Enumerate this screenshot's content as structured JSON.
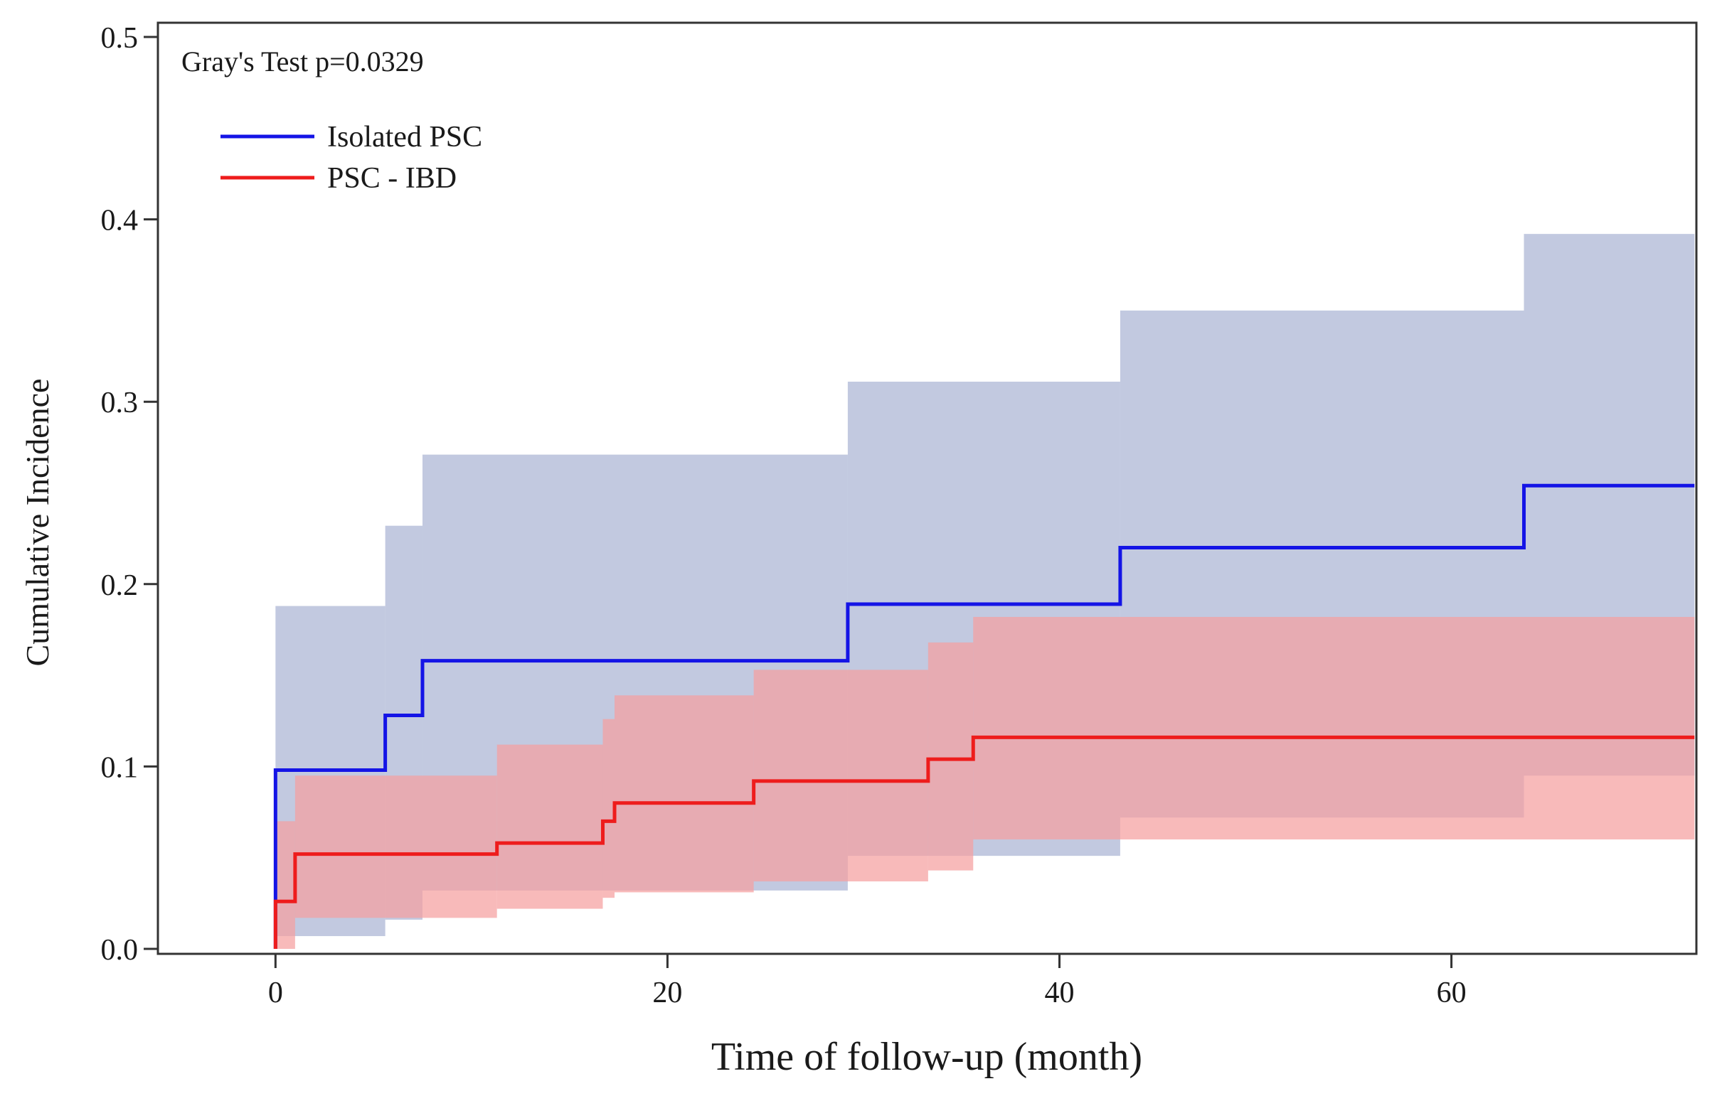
{
  "chart_data": {
    "type": "line",
    "title": "",
    "annotation": "Gray's Test p=0.0329",
    "xlabel": "Time of follow-up (month)",
    "ylabel": "Cumulative Incidence",
    "xlim": [
      -6,
      72.5
    ],
    "ylim": [
      0,
      0.5
    ],
    "x_ticks": [
      0,
      20,
      40,
      60
    ],
    "x_tick_labels": [
      "0",
      "20",
      "40",
      "60"
    ],
    "y_ticks": [
      0.0,
      0.1,
      0.2,
      0.3,
      0.4,
      0.5
    ],
    "y_tick_labels": [
      "0.0",
      "0.1",
      "0.2",
      "0.3",
      "0.4",
      "0.5"
    ],
    "legend": {
      "position": "top-left"
    },
    "series": [
      {
        "name": "Isolated PSC",
        "color": "#1414e6",
        "band_color": "#aab4d4",
        "steps": [
          {
            "x": 0,
            "y": 0.0,
            "lo": 0.0,
            "hi": 0.0
          },
          {
            "x": 0,
            "y": 0.098,
            "lo": 0.007,
            "hi": 0.188
          },
          {
            "x": 5.6,
            "y": 0.128,
            "lo": 0.016,
            "hi": 0.232
          },
          {
            "x": 7.5,
            "y": 0.158,
            "lo": 0.032,
            "hi": 0.271
          },
          {
            "x": 29.2,
            "y": 0.189,
            "lo": 0.051,
            "hi": 0.311
          },
          {
            "x": 43.1,
            "y": 0.22,
            "lo": 0.072,
            "hi": 0.35
          },
          {
            "x": 63.7,
            "y": 0.254,
            "lo": 0.095,
            "hi": 0.392
          }
        ],
        "x_end": 72.4
      },
      {
        "name": "PSC - IBD",
        "color": "#ee1c1c",
        "band_color": "#f5a0a0",
        "steps": [
          {
            "x": 0,
            "y": 0.0,
            "lo": 0.0,
            "hi": 0.0
          },
          {
            "x": 0,
            "y": 0.026,
            "lo": 0.0,
            "hi": 0.07
          },
          {
            "x": 1.0,
            "y": 0.052,
            "lo": 0.017,
            "hi": 0.095
          },
          {
            "x": 11.3,
            "y": 0.058,
            "lo": 0.022,
            "hi": 0.112
          },
          {
            "x": 16.7,
            "y": 0.07,
            "lo": 0.028,
            "hi": 0.126
          },
          {
            "x": 17.3,
            "y": 0.08,
            "lo": 0.031,
            "hi": 0.139
          },
          {
            "x": 24.4,
            "y": 0.092,
            "lo": 0.037,
            "hi": 0.153
          },
          {
            "x": 33.3,
            "y": 0.104,
            "lo": 0.043,
            "hi": 0.168
          },
          {
            "x": 35.6,
            "y": 0.116,
            "lo": 0.06,
            "hi": 0.182
          }
        ],
        "x_end": 72.4
      }
    ]
  }
}
